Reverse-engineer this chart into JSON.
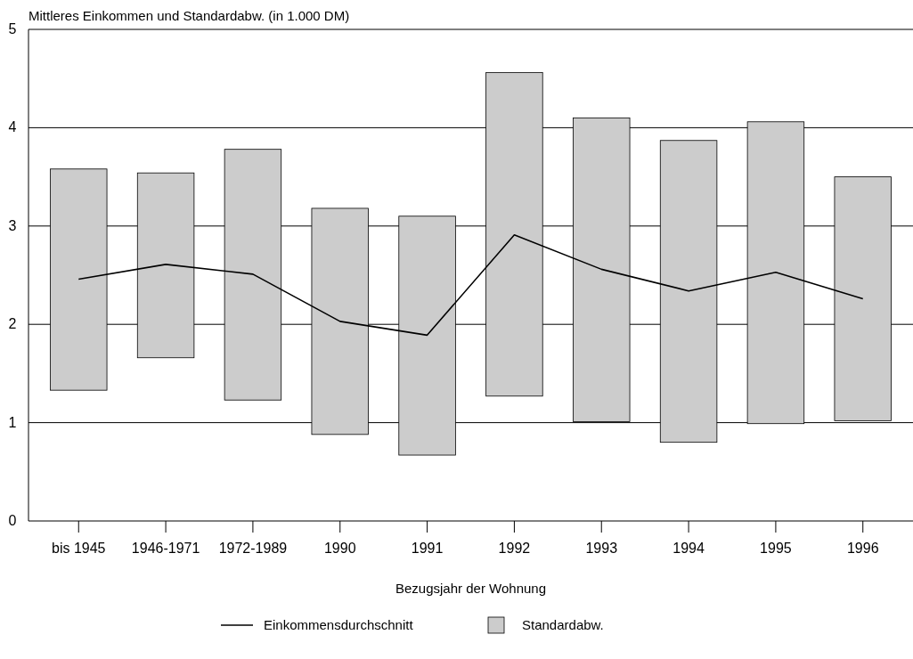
{
  "chart_data": {
    "type": "bar",
    "ylabel": "Mittleres Einkommen und Standardabw. (in 1.000 DM)",
    "xlabel": "Bezugsjahr der Wohnung",
    "categories": [
      "bis 1945",
      "1946-1971",
      "1972-1989",
      "1990",
      "1991",
      "1992",
      "1993",
      "1994",
      "1995",
      "1996"
    ],
    "series": [
      {
        "name": "Einkommensdurchschnitt",
        "type": "line",
        "color": "#000000",
        "values": [
          2.46,
          2.61,
          2.51,
          2.03,
          1.89,
          2.91,
          2.56,
          2.34,
          2.53,
          2.26
        ]
      },
      {
        "name": "Standardabw.",
        "color": "#cccccc",
        "base": [
          1.33,
          1.66,
          1.23,
          0.88,
          0.67,
          1.27,
          1.01,
          0.8,
          0.99,
          1.02
        ],
        "values": [
          2.25,
          1.88,
          2.55,
          2.3,
          2.43,
          3.29,
          3.09,
          3.07,
          3.07,
          2.48
        ]
      }
    ],
    "ylim": [
      0,
      5
    ],
    "yticks": [
      0,
      1,
      2,
      3,
      4,
      5
    ],
    "grid": "y",
    "legend": "bottom"
  }
}
